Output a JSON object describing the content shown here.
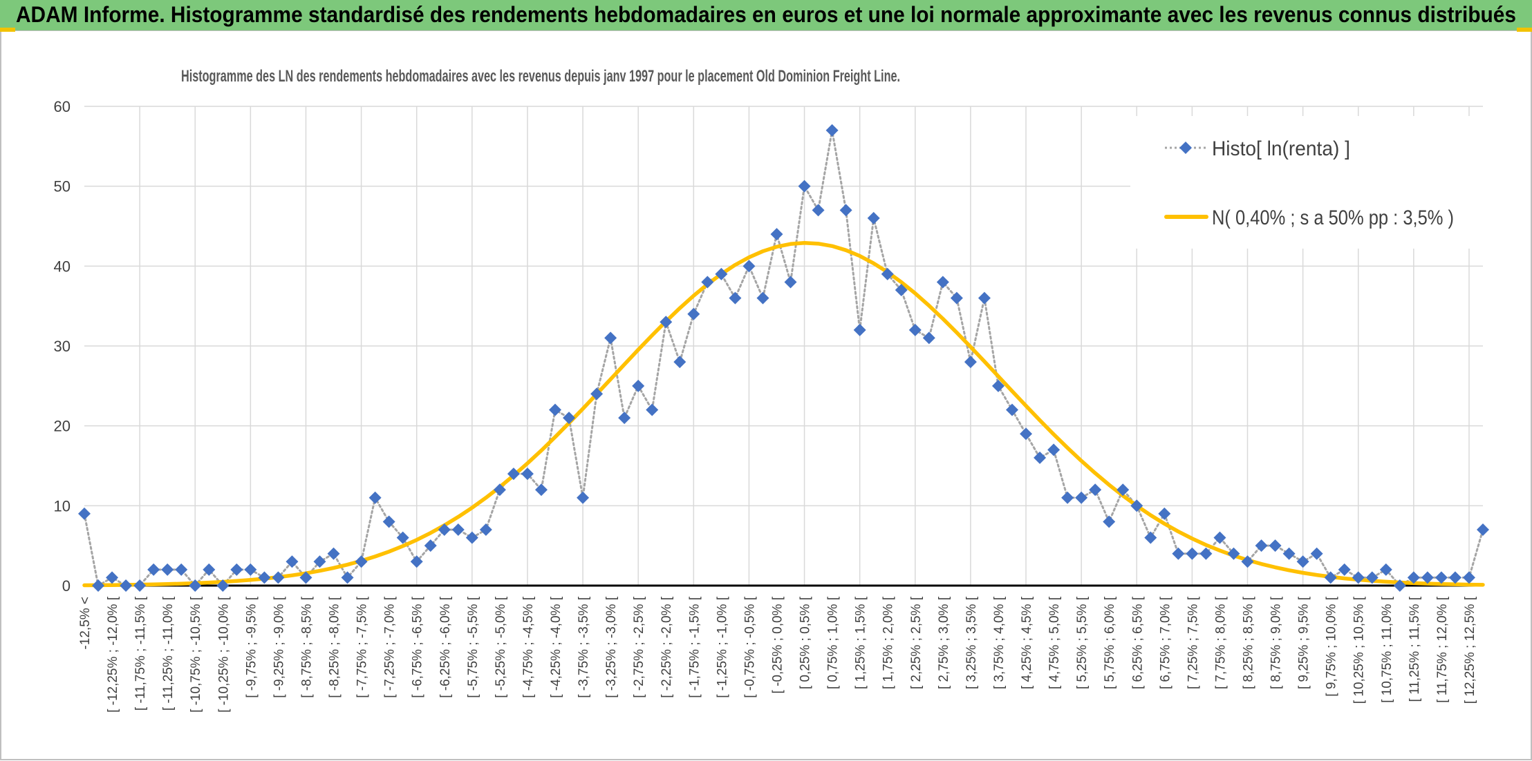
{
  "banner": {
    "title": "ADAM Informe. Histogramme standardisé des rendements hebdomadaires en euros et une loi normale approximante avec les revenus connus distribués"
  },
  "chart_data": {
    "type": "line",
    "title": "Histogramme des LN des rendements hebdomadaires avec les revenus depuis janv 1997 pour le placement Old Dominion Freight Line.",
    "categories": [
      "-12,5% <",
      null,
      "[ -12,25% ; -12,0% [",
      null,
      "[ -11,75% ; -11,5% [",
      null,
      "[ -11,25% ; -11,0% [",
      null,
      "[ -10,75% ; -10,5% [",
      null,
      "[ -10,25% ; -10,0% [",
      null,
      "[ -9,75% ; -9,5% [",
      null,
      "[ -9,25% ; -9,0% [",
      null,
      "[ -8,75% ; -8,5% [",
      null,
      "[ -8,25% ; -8,0% [",
      null,
      "[ -7,75% ; -7,5% [",
      null,
      "[ -7,25% ; -7,0% [",
      null,
      "[ -6,75% ; -6,5% [",
      null,
      "[ -6,25% ; -6,0% [",
      null,
      "[ -5,75% ; -5,5% [",
      null,
      "[ -5,25% ; -5,0% [",
      null,
      "[ -4,75% ; -4,5% [",
      null,
      "[ -4,25% ; -4,0% [",
      null,
      "[ -3,75% ; -3,5% [",
      null,
      "[ -3,25% ; -3,0% [",
      null,
      "[ -2,75% ; -2,5% [",
      null,
      "[ -2,25% ; -2,0% [",
      null,
      "[ -1,75% ; -1,5% [",
      null,
      "[ -1,25% ; -1,0% [",
      null,
      "[ -0,75% ; -0,5% [",
      null,
      "[ -0,25% ; 0,0% [",
      null,
      "[ 0,25% ; 0,5% [",
      null,
      "[ 0,75% ; 1,0% [",
      null,
      "[ 1,25% ; 1,5% [",
      null,
      "[ 1,75% ; 2,0% [",
      null,
      "[ 2,25% ; 2,5% [",
      null,
      "[ 2,75% ; 3,0% [",
      null,
      "[ 3,25% ; 3,5% [",
      null,
      "[ 3,75% ; 4,0% [",
      null,
      "[ 4,25% ; 4,5% [",
      null,
      "[ 4,75% ; 5,0% [",
      null,
      "[ 5,25% ; 5,5% [",
      null,
      "[ 5,75% ; 6,0% [",
      null,
      "[ 6,25% ; 6,5% [",
      null,
      "[ 6,75% ; 7,0% [",
      null,
      "[ 7,25% ; 7,5% [",
      null,
      "[ 7,75% ; 8,0% [",
      null,
      "[ 8,25% ; 8,5% [",
      null,
      "[ 8,75% ; 9,0% [",
      null,
      "[ 9,25% ; 9,5% [",
      null,
      "[ 9,75% ; 10,0% [",
      null,
      "[ 10,25% ; 10,5% [",
      null,
      "[ 10,75% ; 11,0% [",
      null,
      "[ 11,25% ; 11,5% [",
      null,
      "[ 11,75% ; 12,0% [",
      null,
      "[ 12,25% ; 12,5% [",
      null
    ],
    "series": [
      {
        "name": "Histo[ ln(renta) ]",
        "color": "#4472c4",
        "line_color": "#a5a5a5",
        "marker": "diamond",
        "values": [
          9,
          0,
          1,
          0,
          0,
          2,
          2,
          2,
          0,
          2,
          0,
          2,
          2,
          1,
          1,
          3,
          1,
          3,
          4,
          1,
          3,
          11,
          8,
          6,
          3,
          5,
          7,
          7,
          6,
          7,
          12,
          14,
          14,
          12,
          22,
          21,
          11,
          24,
          31,
          21,
          25,
          22,
          33,
          28,
          34,
          38,
          39,
          36,
          40,
          36,
          44,
          38,
          50,
          47,
          57,
          47,
          32,
          46,
          39,
          37,
          32,
          31,
          38,
          36,
          28,
          36,
          25,
          22,
          19,
          16,
          17,
          11,
          11,
          12,
          8,
          12,
          10,
          6,
          9,
          4,
          4,
          4,
          6,
          4,
          3,
          5,
          5,
          4,
          3,
          4,
          1,
          2,
          1,
          1,
          2,
          0,
          1,
          1,
          1,
          1,
          1,
          7
        ]
      },
      {
        "name": "N( 0,40% ; s a 50% pp : 3,5% )",
        "color": "#ffc000",
        "values": [
          0.04,
          0.05,
          0.07,
          0.09,
          0.12,
          0.15,
          0.19,
          0.24,
          0.3,
          0.38,
          0.47,
          0.58,
          0.71,
          0.87,
          1.06,
          1.28,
          1.54,
          1.85,
          2.21,
          2.62,
          3.1,
          3.64,
          4.25,
          4.95,
          5.72,
          6.59,
          7.55,
          8.6,
          9.75,
          11.0,
          12.34,
          13.78,
          15.31,
          16.91,
          18.6,
          20.35,
          22.14,
          23.98,
          25.83,
          27.69,
          29.53,
          31.33,
          33.07,
          34.73,
          36.29,
          37.72,
          39.01,
          40.15,
          41.1,
          41.86,
          42.42,
          42.77,
          42.9,
          42.81,
          42.51,
          41.99,
          41.27,
          40.35,
          39.25,
          37.99,
          36.59,
          35.05,
          33.41,
          31.68,
          29.89,
          28.06,
          26.21,
          24.35,
          22.51,
          20.7,
          18.94,
          17.25,
          15.62,
          14.08,
          12.62,
          11.26,
          9.99,
          8.82,
          7.75,
          6.77,
          5.89,
          5.09,
          4.39,
          3.76,
          3.2,
          2.71,
          2.29,
          1.92,
          1.6,
          1.33,
          1.1,
          0.9,
          0.74,
          0.6,
          0.49,
          0.39,
          0.31,
          0.25,
          0.2,
          0.16,
          0.12,
          0.1
        ]
      }
    ],
    "ylim": [
      0,
      60
    ],
    "yticks": [
      0,
      10,
      20,
      30,
      40,
      50,
      60
    ],
    "grid": true,
    "legend": "upper right"
  }
}
